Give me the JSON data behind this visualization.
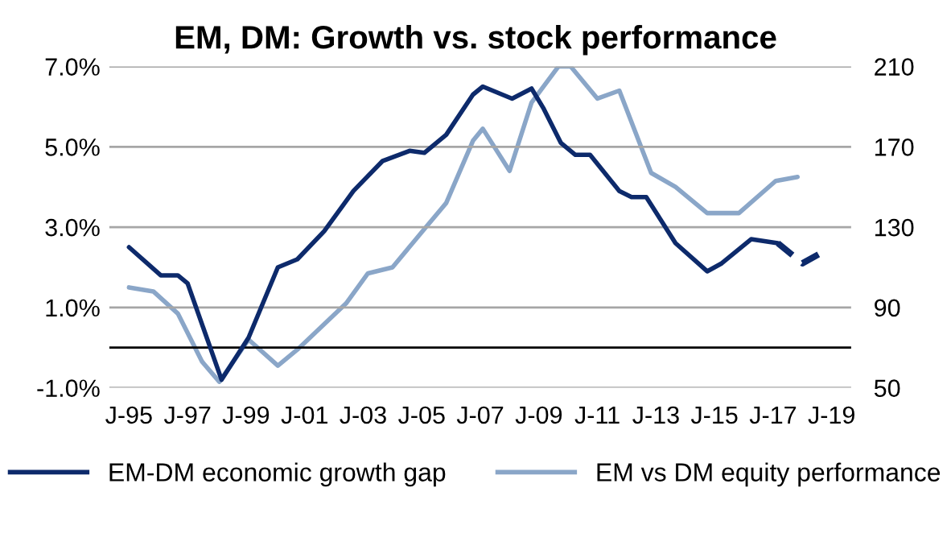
{
  "chart_data": {
    "type": "line",
    "title": "EM, DM: Growth vs. stock performance",
    "xlim": [
      "1994-05",
      "2019-09"
    ],
    "xticks": [
      {
        "value": "1995-01",
        "label": "J-95"
      },
      {
        "value": "1997-01",
        "label": "J-97"
      },
      {
        "value": "1999-01",
        "label": "J-99"
      },
      {
        "value": "2001-01",
        "label": "J-01"
      },
      {
        "value": "2003-01",
        "label": "J-03"
      },
      {
        "value": "2005-01",
        "label": "J-05"
      },
      {
        "value": "2007-01",
        "label": "J-07"
      },
      {
        "value": "2009-01",
        "label": "J-09"
      },
      {
        "value": "2011-01",
        "label": "J-11"
      },
      {
        "value": "2013-01",
        "label": "J-13"
      },
      {
        "value": "2015-01",
        "label": "J-15"
      },
      {
        "value": "2017-01",
        "label": "J-17"
      },
      {
        "value": "2019-01",
        "label": "J-19"
      }
    ],
    "ylim": [
      -1.0,
      7.0
    ],
    "yticks": [
      {
        "value": -1.0,
        "label": "-1.0%"
      },
      {
        "value": 1.0,
        "label": "1.0%"
      },
      {
        "value": 3.0,
        "label": "3.0%"
      },
      {
        "value": 5.0,
        "label": "5.0%"
      },
      {
        "value": 7.0,
        "label": "7.0%"
      }
    ],
    "y2lim": [
      50,
      210
    ],
    "y2ticks": [
      50,
      90,
      130,
      170,
      210
    ],
    "grid": "y",
    "legend": "bottom",
    "ref_lines": [
      {
        "axis": "y",
        "value": 0,
        "color": "#000000"
      }
    ],
    "series": [
      {
        "name": "EM-DM economic growth gap",
        "color": "#0d2a6b",
        "line_style": "solid",
        "x": [
          "1995-01",
          "1996-02",
          "1996-09",
          "1997-01",
          "1998-03",
          "1999-02",
          "2000-02",
          "2000-10",
          "2001-09",
          "2002-09",
          "2003-09",
          "2004-08",
          "2005-02",
          "2005-11",
          "2006-10",
          "2007-02",
          "2008-02",
          "2008-10",
          "2009-03",
          "2009-10",
          "2010-04",
          "2010-10",
          "2011-10",
          "2012-03",
          "2012-09",
          "2013-09",
          "2014-10",
          "2015-04",
          "2016-04",
          "2017-03"
        ],
        "values": [
          2.5,
          1.8,
          1.8,
          1.6,
          -0.8,
          0.25,
          2.0,
          2.2,
          2.9,
          3.9,
          4.65,
          4.9,
          4.85,
          5.3,
          6.3,
          6.5,
          6.2,
          6.45,
          5.95,
          5.1,
          4.8,
          4.8,
          3.9,
          3.75,
          3.75,
          2.6,
          1.9,
          2.1,
          2.7,
          2.6
        ]
      },
      {
        "color": "#0d2a6b",
        "line_style": "dashed",
        "x": [
          "2017-03",
          "2018-01",
          "2018-10"
        ],
        "values": [
          2.6,
          2.1,
          2.4
        ]
      },
      {
        "name": "EM vs DM equity performance",
        "color": "#8aa6c8",
        "axis": "y2",
        "line_style": "solid",
        "x": [
          "1995-01",
          "1995-11",
          "1996-09",
          "1997-07",
          "1998-02",
          "1999-02",
          "2000-02",
          "2000-10",
          "2002-06",
          "2003-03",
          "2004-01",
          "2005-02",
          "2005-11",
          "2006-10",
          "2007-02",
          "2008-01",
          "2008-10",
          "2009-09",
          "2010-02",
          "2011-01",
          "2011-10",
          "2012-11",
          "2013-09",
          "2014-10",
          "2015-11",
          "2017-02",
          "2017-11"
        ],
        "values": [
          100,
          98,
          87,
          63,
          53,
          74,
          61,
          69,
          92,
          107,
          110,
          129,
          142,
          173,
          179,
          158,
          192,
          210,
          210,
          194,
          198,
          157,
          150,
          137,
          137,
          153,
          155
        ]
      }
    ]
  }
}
